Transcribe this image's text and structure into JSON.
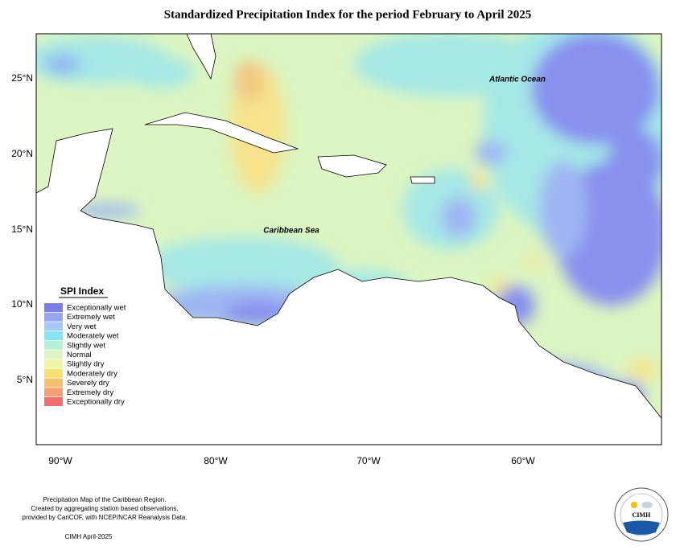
{
  "title": "Standardized Precipitation Index for the period February to April 2025",
  "places": [
    "Atlantic Ocean",
    "Caribbean Sea"
  ],
  "axes": {
    "lat_labels": [
      "25°N",
      "20°N",
      "15°N",
      "10°N",
      "5°N"
    ],
    "lon_labels": [
      "90°W",
      "80°W",
      "70°W",
      "60°W"
    ]
  },
  "legend": {
    "title": "SPI Index",
    "items": [
      {
        "label": "Exceptionally wet",
        "color": "#7b7ee8"
      },
      {
        "label": "Extremely wet",
        "color": "#96a6f0"
      },
      {
        "label": "Very wet",
        "color": "#a5c8f4"
      },
      {
        "label": "Moderately wet",
        "color": "#86e6f2"
      },
      {
        "label": "Slightly wet",
        "color": "#b6f0d8"
      },
      {
        "label": "Normal",
        "color": "#dcf5c2"
      },
      {
        "label": "Slightly dry",
        "color": "#eef5a6"
      },
      {
        "label": "Moderately dry",
        "color": "#f6e070"
      },
      {
        "label": "Severely dry",
        "color": "#f6c070"
      },
      {
        "label": "Extremely dry",
        "color": "#f4a070"
      },
      {
        "label": "Exceptionally dry",
        "color": "#f07070"
      }
    ]
  },
  "footer": {
    "lines": [
      "Precipitation Map of the Caribbean Region.",
      "Created by aggregating station based observations,",
      "provided by CariCOF, with NCEP/NCAR Reanalysis Data."
    ],
    "credit": "CIMH April-2025"
  },
  "logo": "CIMH"
}
